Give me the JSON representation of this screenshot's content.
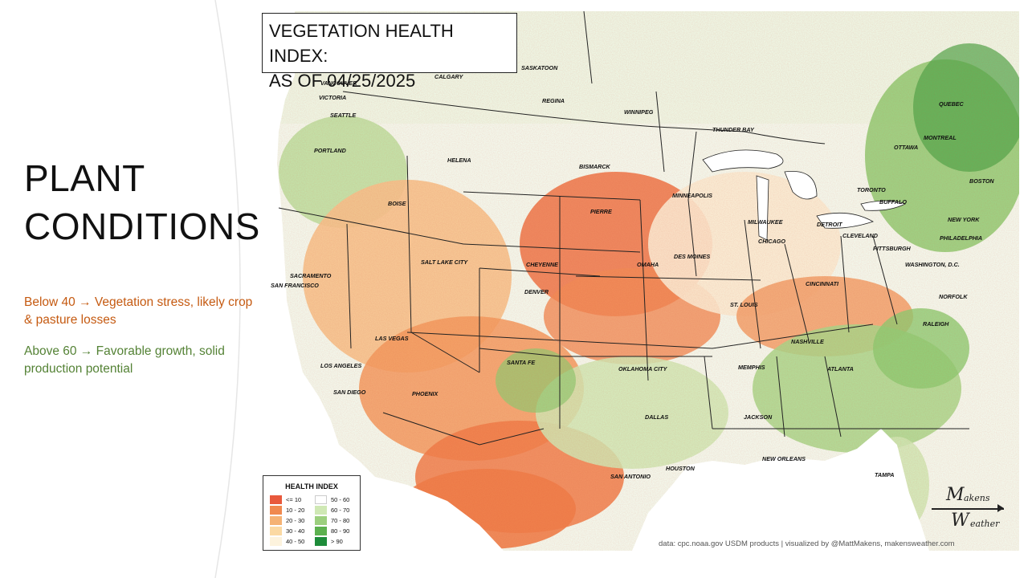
{
  "slide": {
    "title_line1": "PLANT",
    "title_line2": "CONDITIONS",
    "accent_color": "#ed7d31",
    "notes": [
      {
        "text": "Below 40 → Vegetation stress, likely crop & pasture losses",
        "color": "#c55a11"
      },
      {
        "text": "Above 60 → Favorable growth, solid production potential",
        "color": "#548235"
      }
    ]
  },
  "map": {
    "title_line1": "VEGETATION HEALTH INDEX:",
    "title_line2": "AS OF 04/25/2025",
    "cities": [
      "VANCOUVER",
      "VICTORIA",
      "SEATTLE",
      "CALGARY",
      "SASKATOON",
      "REGINA",
      "WINNIPEG",
      "THUNDER BAY",
      "QUEBEC",
      "MONTREAL",
      "OTTAWA",
      "PORTLAND",
      "HELENA",
      "BISMARCK",
      "BOISE",
      "PIERRE",
      "MINNEAPOLIS",
      "TORONTO",
      "BUFFALO",
      "BOSTON",
      "MILWAUKEE",
      "DETROIT",
      "NEW YORK",
      "CHICAGO",
      "CLEVELAND",
      "PHILADELPHIA",
      "PITTSBURGH",
      "SALT LAKE CITY",
      "CHEYENNE",
      "DES MOINES",
      "OMAHA",
      "WASHINGTON, D.C.",
      "SACRAMENTO",
      "SAN FRANCISCO",
      "DENVER",
      "CINCINNATI",
      "ST. LOUIS",
      "NORFOLK",
      "LAS VEGAS",
      "NASHVILLE",
      "RALEIGH",
      "SANTA FE",
      "OKLAHOMA CITY",
      "MEMPHIS",
      "LOS ANGELES",
      "ATLANTA",
      "SAN DIEGO",
      "PHOENIX",
      "DALLAS",
      "JACKSON",
      "NEW ORLEANS",
      "HOUSTON",
      "SAN ANTONIO",
      "TAMPA"
    ],
    "legend": {
      "title": "HEALTH INDEX",
      "items": [
        {
          "label": "<= 10",
          "color": "#e8593c"
        },
        {
          "label": "10 - 20",
          "color": "#f0894f"
        },
        {
          "label": "20 - 30",
          "color": "#f5b274"
        },
        {
          "label": "30 - 40",
          "color": "#fbd9a3"
        },
        {
          "label": "40 - 50",
          "color": "#fdf3dd"
        },
        {
          "label": "50 - 60",
          "color": "#ffffff"
        },
        {
          "label": "60 - 70",
          "color": "#cfe8b4"
        },
        {
          "label": "70 - 80",
          "color": "#9ccf7e"
        },
        {
          "label": "80 - 90",
          "color": "#5db14f"
        },
        {
          "label": "> 90",
          "color": "#1e8c3a"
        }
      ]
    },
    "credit": "data: cpc.noaa.gov USDM products | visualized by @MattMakens, makensweather.com",
    "logo": {
      "m": "M",
      "akens": "akens",
      "w": "W",
      "eather": "eather"
    }
  }
}
